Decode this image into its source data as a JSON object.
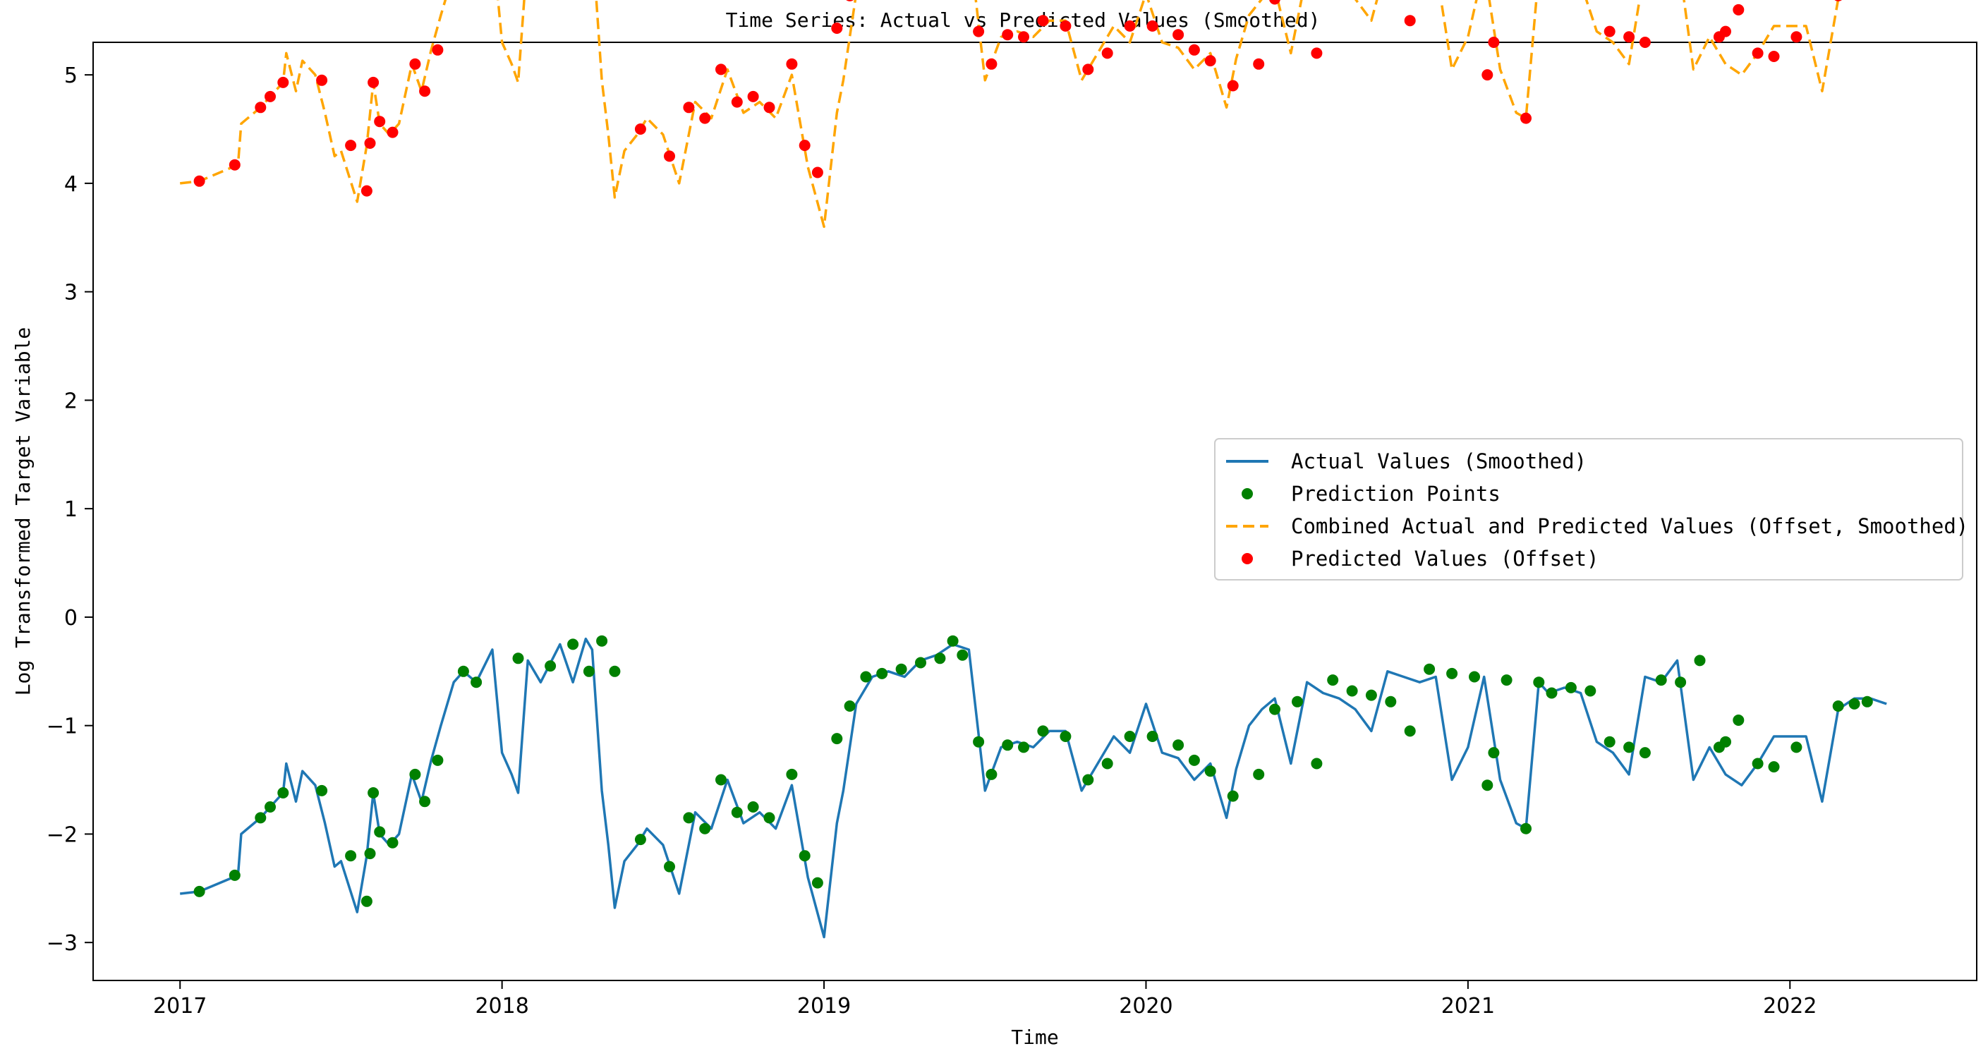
{
  "chart_data": {
    "type": "line",
    "title": "Time Series: Actual vs Predicted Values (Smoothed)",
    "xlabel": "Time",
    "ylabel": "Log Transformed Target Variable",
    "xlim": [
      2016.73,
      2022.58
    ],
    "ylim": [
      -3.35,
      5.3
    ],
    "xticks": [
      2017,
      2018,
      2019,
      2020,
      2021,
      2022
    ],
    "xtick_labels": [
      "2017",
      "2018",
      "2019",
      "2020",
      "2021",
      "2022"
    ],
    "yticks": [
      -3,
      -2,
      -1,
      0,
      1,
      2,
      3,
      4,
      5
    ],
    "ytick_labels": [
      "−3",
      "−2",
      "−1",
      "0",
      "1",
      "2",
      "3",
      "4",
      "5"
    ],
    "grid": false,
    "legend_position": "center-right",
    "legend": [
      "Actual Values (Smoothed)",
      "Prediction Points",
      "Combined Actual and Predicted Values (Offset, Smoothed)",
      "Predicted Values (Offset)"
    ],
    "offset": 6.55,
    "colors": {
      "actual": "#1f77b4",
      "prediction_points": "#008000",
      "combined": "#ffa500",
      "predicted_offset": "#ff0000"
    },
    "series": [
      {
        "name": "Actual Values (Smoothed)",
        "x": [
          2017.0,
          2017.06,
          2017.18,
          2017.19,
          2017.25,
          2017.28,
          2017.32,
          2017.33,
          2017.36,
          2017.38,
          2017.42,
          2017.45,
          2017.48,
          2017.5,
          2017.55,
          2017.58,
          2017.6,
          2017.62,
          2017.65,
          2017.68,
          2017.72,
          2017.75,
          2017.78,
          2017.81,
          2017.85,
          2017.88,
          2017.92,
          2017.97,
          2018.0,
          2018.03,
          2018.05,
          2018.08,
          2018.12,
          2018.18,
          2018.22,
          2018.26,
          2018.28,
          2018.31,
          2018.33,
          2018.35,
          2018.38,
          2018.42,
          2018.45,
          2018.5,
          2018.55,
          2018.6,
          2018.65,
          2018.7,
          2018.75,
          2018.8,
          2018.85,
          2018.9,
          2018.95,
          2019.0,
          2019.04,
          2019.06,
          2019.1,
          2019.15,
          2019.2,
          2019.25,
          2019.3,
          2019.35,
          2019.4,
          2019.45,
          2019.5,
          2019.55,
          2019.6,
          2019.65,
          2019.7,
          2019.75,
          2019.8,
          2019.85,
          2019.9,
          2019.95,
          2020.0,
          2020.05,
          2020.1,
          2020.15,
          2020.2,
          2020.25,
          2020.28,
          2020.32,
          2020.36,
          2020.4,
          2020.45,
          2020.5,
          2020.55,
          2020.6,
          2020.65,
          2020.7,
          2020.75,
          2020.8,
          2020.85,
          2020.9,
          2020.95,
          2021.0,
          2021.05,
          2021.1,
          2021.15,
          2021.18,
          2021.22,
          2021.25,
          2021.3,
          2021.35,
          2021.4,
          2021.45,
          2021.5,
          2021.55,
          2021.6,
          2021.65,
          2021.7,
          2021.75,
          2021.8,
          2021.85,
          2021.9,
          2021.95,
          2022.0,
          2022.05,
          2022.1,
          2022.15,
          2022.2,
          2022.25,
          2022.3
        ],
        "y": [
          -2.55,
          -2.53,
          -2.38,
          -2.0,
          -1.85,
          -1.75,
          -1.62,
          -1.35,
          -1.7,
          -1.42,
          -1.55,
          -1.9,
          -2.3,
          -2.25,
          -2.72,
          -2.2,
          -1.62,
          -2.0,
          -2.1,
          -2.0,
          -1.45,
          -1.7,
          -1.32,
          -1.0,
          -0.6,
          -0.5,
          -0.6,
          -0.3,
          -1.25,
          -1.45,
          -1.62,
          -0.4,
          -0.6,
          -0.25,
          -0.6,
          -0.2,
          -0.3,
          -1.6,
          -2.1,
          -2.68,
          -2.25,
          -2.1,
          -1.95,
          -2.1,
          -2.55,
          -1.8,
          -1.95,
          -1.5,
          -1.9,
          -1.8,
          -1.95,
          -1.55,
          -2.4,
          -2.95,
          -1.9,
          -1.6,
          -0.8,
          -0.55,
          -0.5,
          -0.55,
          -0.4,
          -0.35,
          -0.25,
          -0.3,
          -1.6,
          -1.2,
          -1.15,
          -1.2,
          -1.05,
          -1.05,
          -1.6,
          -1.35,
          -1.1,
          -1.25,
          -0.8,
          -1.25,
          -1.3,
          -1.5,
          -1.35,
          -1.85,
          -1.4,
          -1.0,
          -0.85,
          -0.75,
          -1.35,
          -0.6,
          -0.7,
          -0.75,
          -0.85,
          -1.05,
          -0.5,
          -0.55,
          -0.6,
          -0.55,
          -1.5,
          -1.2,
          -0.55,
          -1.5,
          -1.9,
          -1.95,
          -0.6,
          -0.7,
          -0.65,
          -0.7,
          -1.15,
          -1.25,
          -1.45,
          -0.55,
          -0.6,
          -0.4,
          -1.5,
          -1.2,
          -1.45,
          -1.55,
          -1.35,
          -1.1,
          -1.1,
          -1.1,
          -1.7,
          -0.85,
          -0.75,
          -0.75,
          -0.8
        ]
      },
      {
        "name": "Prediction Points",
        "x": [
          2017.06,
          2017.17,
          2017.25,
          2017.28,
          2017.32,
          2017.44,
          2017.53,
          2017.58,
          2017.59,
          2017.6,
          2017.62,
          2017.66,
          2017.73,
          2017.76,
          2017.8,
          2017.88,
          2017.92,
          2018.05,
          2018.15,
          2018.22,
          2018.27,
          2018.31,
          2018.35,
          2018.43,
          2018.52,
          2018.58,
          2018.63,
          2018.68,
          2018.73,
          2018.78,
          2018.83,
          2018.9,
          2018.94,
          2018.98,
          2019.04,
          2019.08,
          2019.13,
          2019.18,
          2019.24,
          2019.3,
          2019.36,
          2019.4,
          2019.43,
          2019.48,
          2019.52,
          2019.57,
          2019.62,
          2019.68,
          2019.75,
          2019.82,
          2019.88,
          2019.95,
          2020.02,
          2020.1,
          2020.15,
          2020.2,
          2020.27,
          2020.35,
          2020.4,
          2020.47,
          2020.53,
          2020.58,
          2020.64,
          2020.7,
          2020.76,
          2020.82,
          2020.88,
          2020.95,
          2021.02,
          2021.06,
          2021.08,
          2021.12,
          2021.18,
          2021.22,
          2021.26,
          2021.32,
          2021.38,
          2021.44,
          2021.5,
          2021.55,
          2021.6,
          2021.66,
          2021.72,
          2021.78,
          2021.8,
          2021.84,
          2021.9,
          2021.95,
          2022.02,
          2022.15,
          2022.2,
          2022.24
        ],
        "y": [
          -2.53,
          -2.38,
          -1.85,
          -1.75,
          -1.62,
          -1.6,
          -2.2,
          -2.62,
          -2.18,
          -1.62,
          -1.98,
          -2.08,
          -1.45,
          -1.7,
          -1.32,
          -0.5,
          -0.6,
          -0.38,
          -0.45,
          -0.25,
          -0.5,
          -0.22,
          -0.5,
          -2.05,
          -2.3,
          -1.85,
          -1.95,
          -1.5,
          -1.8,
          -1.75,
          -1.85,
          -1.45,
          -2.2,
          -2.45,
          -1.12,
          -0.82,
          -0.55,
          -0.52,
          -0.48,
          -0.42,
          -0.38,
          -0.22,
          -0.35,
          -1.15,
          -1.45,
          -1.18,
          -1.2,
          -1.05,
          -1.1,
          -1.5,
          -1.35,
          -1.1,
          -1.1,
          -1.18,
          -1.32,
          -1.42,
          -1.65,
          -1.45,
          -0.85,
          -0.78,
          -1.35,
          -0.58,
          -0.68,
          -0.72,
          -0.78,
          -1.05,
          -0.48,
          -0.52,
          -0.55,
          -1.55,
          -1.25,
          -0.58,
          -1.95,
          -0.6,
          -0.7,
          -0.65,
          -0.68,
          -1.15,
          -1.2,
          -1.25,
          -0.58,
          -0.6,
          -0.4,
          -1.2,
          -1.15,
          -0.95,
          -1.35,
          -1.38,
          -1.2,
          -0.82,
          -0.8,
          -0.78
        ]
      },
      {
        "name": "Combined Actual and Predicted Values (Offset, Smoothed)",
        "offset_series": "Actual Values (Smoothed)"
      },
      {
        "name": "Predicted Values (Offset)",
        "offset_series": "Prediction Points"
      }
    ]
  }
}
